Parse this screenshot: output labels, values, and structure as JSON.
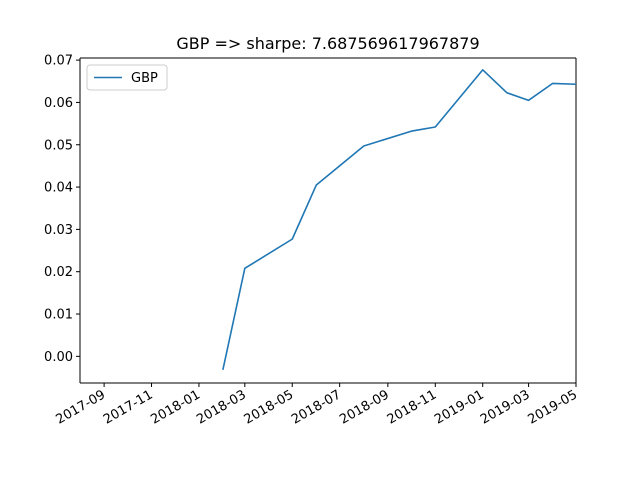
{
  "chart_data": {
    "type": "line",
    "title": "GBP => sharpe: 7.687569617967879",
    "xlabel": "",
    "ylabel": "",
    "x_axis_type": "date",
    "xlim": [
      "2017-08-01",
      "2019-05-01"
    ],
    "ylim": [
      -0.0063,
      0.0705
    ],
    "x_ticks": [
      "2017-09-01",
      "2017-11-01",
      "2018-01-01",
      "2018-03-01",
      "2018-05-01",
      "2018-07-01",
      "2018-09-01",
      "2018-11-01",
      "2019-01-01",
      "2019-03-01",
      "2019-05-01"
    ],
    "x_tick_labels": [
      "2017-09",
      "2017-11",
      "2018-01",
      "2018-03",
      "2018-05",
      "2018-07",
      "2018-09",
      "2018-11",
      "2019-01",
      "2019-03",
      "2019-05"
    ],
    "y_ticks": [
      0.0,
      0.01,
      0.02,
      0.03,
      0.04,
      0.05,
      0.06,
      0.07
    ],
    "y_tick_labels": [
      "0.00",
      "0.01",
      "0.02",
      "0.03",
      "0.04",
      "0.05",
      "0.06",
      "0.07"
    ],
    "grid": false,
    "legend_position": "upper-left",
    "series": [
      {
        "name": "GBP",
        "color": "#1f77b4",
        "x": [
          "2018-02-01",
          "2018-03-01",
          "2018-05-01",
          "2018-06-01",
          "2018-08-01",
          "2018-10-01",
          "2018-11-01",
          "2019-01-01",
          "2019-02-01",
          "2019-03-01",
          "2019-04-01",
          "2019-05-01"
        ],
        "y": [
          -0.003,
          0.0208,
          0.0277,
          0.0405,
          0.0497,
          0.0532,
          0.0542,
          0.0677,
          0.0623,
          0.0605,
          0.0645,
          0.0643
        ]
      }
    ]
  }
}
